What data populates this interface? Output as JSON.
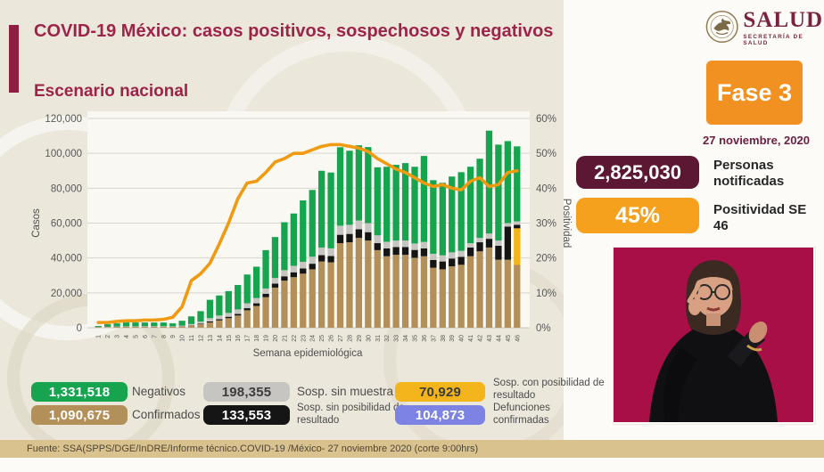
{
  "header": {
    "title": "COVID-19 México: casos positivos, sospechosos y negativos",
    "subtitle": "Escenario nacional",
    "logo": {
      "text": "SALUD",
      "subtext": "SECRETARÍA DE SALUD"
    },
    "phase_badge": {
      "label": "Fase 3",
      "color": "#f19122"
    },
    "date": "27 noviembre, 2020"
  },
  "stats": [
    {
      "value": "2,825,030",
      "label": "Personas notificadas",
      "bg": "#5c1733",
      "fg": "#ffffff"
    },
    {
      "value": "45%",
      "label": "Positividad SE 46",
      "bg": "#f5a11d",
      "fg": "#ffffff"
    }
  ],
  "chart_data": {
    "type": "bar",
    "subtype": "stacked_bars_with_line",
    "title": "Escenario nacional",
    "x_label": "Semana epidemiológica",
    "y_left_label": "Casos",
    "y_right_label": "Positividad",
    "y_left_max": 120000,
    "y_right_max": 60,
    "y_left_ticks": [
      "0",
      "20,000",
      "40,000",
      "60,000",
      "80,000",
      "100,000",
      "120,000"
    ],
    "y_right_ticks": [
      "0%",
      "10%",
      "20%",
      "30%",
      "40%",
      "50%",
      "60%"
    ],
    "grid": true,
    "categories": [
      1,
      2,
      3,
      4,
      5,
      6,
      7,
      8,
      9,
      10,
      11,
      12,
      13,
      14,
      15,
      16,
      17,
      18,
      19,
      20,
      21,
      22,
      23,
      24,
      25,
      26,
      27,
      28,
      29,
      30,
      31,
      32,
      33,
      34,
      35,
      36,
      37,
      38,
      39,
      40,
      41,
      42,
      43,
      44,
      45,
      46
    ],
    "series": [
      {
        "name": "Confirmados",
        "color": "#b3905a",
        "values": [
          300,
          400,
          450,
          500,
          500,
          550,
          550,
          550,
          500,
          700,
          1200,
          2000,
          3000,
          4200,
          5500,
          7000,
          10000,
          12500,
          17500,
          23000,
          27000,
          29000,
          31000,
          33500,
          38000,
          37500,
          48500,
          49000,
          51500,
          50000,
          44500,
          41000,
          41800,
          41800,
          40100,
          41000,
          34400,
          33500,
          35200,
          36100,
          41000,
          43800,
          46000,
          39000,
          39000,
          36000
        ]
      },
      {
        "name": "Sosp. con posibilidad de resultado",
        "color": "#f3b51b",
        "values": [
          0,
          0,
          0,
          0,
          0,
          0,
          0,
          0,
          0,
          0,
          0,
          0,
          0,
          0,
          0,
          0,
          0,
          0,
          0,
          0,
          0,
          0,
          0,
          0,
          0,
          0,
          0,
          0,
          0,
          0,
          0,
          0,
          0,
          0,
          0,
          0,
          0,
          0,
          0,
          0,
          0,
          0,
          0,
          0,
          0,
          21000
        ]
      },
      {
        "name": "Sosp. sin posibilidad de resultado",
        "color": "#151515",
        "values": [
          0,
          0,
          50,
          50,
          50,
          50,
          50,
          50,
          50,
          100,
          200,
          350,
          600,
          700,
          800,
          900,
          1200,
          1500,
          2000,
          2300,
          2500,
          2800,
          3000,
          3200,
          3600,
          3600,
          4800,
          4800,
          5000,
          4800,
          4000,
          4500,
          4500,
          4500,
          4500,
          4500,
          4500,
          4500,
          4500,
          4500,
          5000,
          5200,
          5000,
          8000,
          19000,
          2000
        ]
      },
      {
        "name": "Sosp. sin muestra",
        "color": "#c6c5c1",
        "values": [
          100,
          150,
          200,
          250,
          250,
          250,
          250,
          250,
          250,
          400,
          700,
          1150,
          1900,
          2100,
          2200,
          2600,
          2800,
          3000,
          3000,
          3200,
          3500,
          3700,
          3800,
          4000,
          4400,
          4400,
          5200,
          5200,
          5000,
          5200,
          4500,
          3800,
          3700,
          3700,
          3700,
          3700,
          3500,
          3500,
          3500,
          3500,
          2500,
          2500,
          3000,
          3000,
          2000,
          2000
        ]
      },
      {
        "name": "Negativos",
        "color": "#16a44f",
        "values": [
          600,
          1450,
          1800,
          2200,
          2200,
          2150,
          2150,
          2150,
          1700,
          2800,
          4400,
          6000,
          10500,
          11500,
          12500,
          14000,
          16500,
          18000,
          22000,
          23500,
          27500,
          30000,
          35200,
          38300,
          44000,
          43500,
          45000,
          42500,
          43100,
          43600,
          39000,
          43000,
          43400,
          44400,
          44000,
          49300,
          42200,
          41600,
          43500,
          45100,
          43800,
          45400,
          59000,
          55000,
          47000,
          43000
        ]
      }
    ],
    "line": {
      "name": "Positividad",
      "color": "#ef9a10",
      "axis": "right",
      "values": [
        1.5,
        1.5,
        1.8,
        2,
        2,
        2.2,
        2.2,
        2.4,
        3,
        6,
        13.5,
        15.5,
        18.5,
        24,
        30,
        37,
        41.5,
        42,
        44.5,
        47.5,
        48.5,
        50,
        50,
        51,
        52,
        52.5,
        52.5,
        52,
        51.5,
        50.5,
        48.5,
        47,
        45.5,
        44.5,
        43,
        41.5,
        40.5,
        41,
        40,
        39.5,
        42,
        43,
        40.5,
        41,
        44.5,
        45
      ]
    }
  },
  "legend": {
    "items": [
      {
        "value": "1,331,518",
        "label": "Negativos",
        "color": "#16a44f",
        "text_color": "#ffffff"
      },
      {
        "value": "198,355",
        "label": "Sosp. sin muestra",
        "color": "#c6c5c1",
        "text_color": "#3c3c3c"
      },
      {
        "value": "70,929",
        "label": "Sosp. con posibilidad de resultado",
        "color": "#f3b51b",
        "text_color": "#3c3c3c"
      },
      {
        "value": "1,090,675",
        "label": "Confirmados",
        "color": "#b3905a",
        "text_color": "#ffffff"
      },
      {
        "value": "133,553",
        "label": "Sosp. sin posibilidad de resultado",
        "color": "#151515",
        "text_color": "#ffffff"
      },
      {
        "value": "104,873",
        "label": "Defunciones confirmadas",
        "color": "#7c83e3",
        "text_color": "#ffffff"
      }
    ]
  },
  "footer": {
    "source": "Fuente: SSA(SPPS/DGE/InDRE/Informe técnico.COVID-19 /México- 27 noviembre 2020 (corte 9:00hrs)"
  }
}
